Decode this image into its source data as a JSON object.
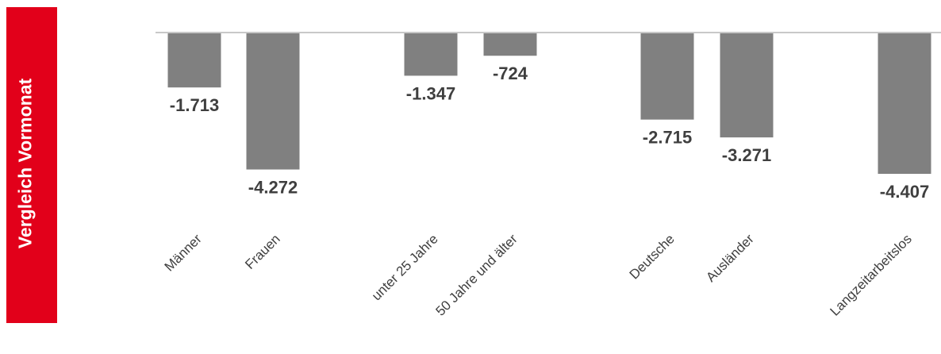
{
  "side_label": "Vergleich Vormonat",
  "colors": {
    "side_panel": "#e2001a",
    "bar": "#808080",
    "axis": "#c8c8c8",
    "label": "#3f3f3f"
  },
  "chart_data": {
    "type": "bar",
    "title": "",
    "xlabel": "",
    "ylabel": "",
    "grid": false,
    "legend": "none",
    "categories": [
      "Männer",
      "Frauen",
      "unter 25 Jahre",
      "50 Jahre und älter",
      "Deutsche",
      "Ausländer",
      "Langzeitarbeitslos"
    ],
    "values": [
      -1713,
      -4272,
      -1347,
      -724,
      -2715,
      -3271,
      -4407
    ],
    "data_labels": [
      "-1.713",
      "-4.272",
      "-1.347",
      "-724",
      "-2.715",
      "-3.271",
      "-4.407"
    ],
    "ylim": [
      -4407,
      0
    ]
  }
}
